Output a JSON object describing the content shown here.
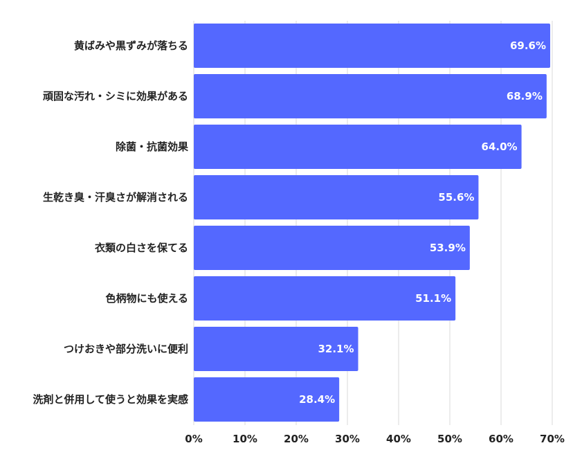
{
  "chart_data": {
    "type": "bar",
    "orientation": "horizontal",
    "categories": [
      "黄ばみや黒ずみが落ちる",
      "頑固な汚れ・シミに効果がある",
      "除菌・抗菌効果",
      "生乾き臭・汗臭さが解消される",
      "衣類の白さを保てる",
      "色柄物にも使える",
      "つけおきや部分洗いに便利",
      "洗剤と併用して使うと効果を実感"
    ],
    "values": [
      69.6,
      68.9,
      64.0,
      55.6,
      53.9,
      51.1,
      32.1,
      28.4
    ],
    "data_labels": [
      "69.6%",
      "68.9%",
      "64.0%",
      "55.6%",
      "53.9%",
      "51.1%",
      "32.1%",
      "28.4%"
    ],
    "x_ticks": [
      "0%",
      "10%",
      "20%",
      "30%",
      "40%",
      "50%",
      "60%",
      "70%"
    ],
    "xlim": [
      0,
      70
    ],
    "title": "",
    "xlabel": "",
    "ylabel": "",
    "grid": true,
    "bar_color": "#5468FF",
    "grid_color": "#D9D9D9"
  }
}
